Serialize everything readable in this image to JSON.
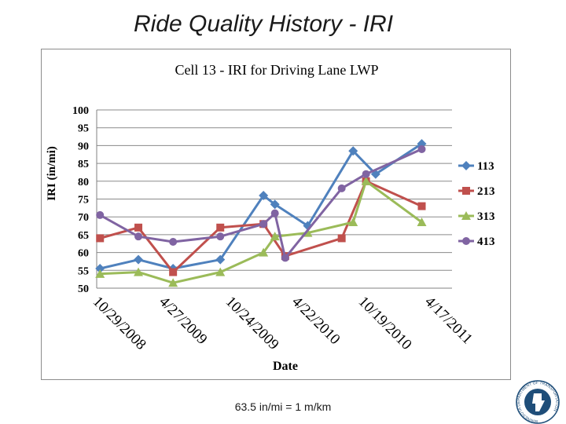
{
  "slide": {
    "title": "Ride Quality History - IRI",
    "footnote": "63.5 in/mi = 1 m/km"
  },
  "chart_data": {
    "type": "line",
    "title": "Cell 13 - IRI for Driving Lane LWP",
    "xlabel": "Date",
    "ylabel": "IRI (in/mi)",
    "ylim": [
      50,
      100
    ],
    "yticks": [
      100,
      95,
      90,
      85,
      80,
      75,
      70,
      65,
      60,
      55,
      50
    ],
    "xticks": [
      "10/29/2008",
      "4/27/2009",
      "10/24/2009",
      "4/22/2010",
      "10/19/2010",
      "4/17/2011"
    ],
    "xlim": [
      "2008-10-20",
      "2011-06-10"
    ],
    "grid": "horizontal",
    "legend_position": "right",
    "series": [
      {
        "name": "113",
        "color": "#4f81bd",
        "marker": "diamond",
        "points": [
          [
            "2008-10-29",
            55.5
          ],
          [
            "2009-02-10",
            58
          ],
          [
            "2009-05-15",
            55.5
          ],
          [
            "2009-09-20",
            58
          ],
          [
            "2010-01-15",
            76
          ],
          [
            "2010-02-15",
            73.5
          ],
          [
            "2010-05-15",
            67.5
          ],
          [
            "2010-09-15",
            88.5
          ],
          [
            "2010-11-15",
            82
          ],
          [
            "2011-03-20",
            90.5
          ]
        ]
      },
      {
        "name": "213",
        "color": "#c0504d",
        "marker": "square",
        "points": [
          [
            "2008-10-29",
            64
          ],
          [
            "2009-02-10",
            67
          ],
          [
            "2009-05-15",
            54.5
          ],
          [
            "2009-09-20",
            67
          ],
          [
            "2010-01-15",
            68
          ],
          [
            "2010-03-15",
            59
          ],
          [
            "2010-08-15",
            64
          ],
          [
            "2010-10-20",
            80
          ],
          [
            "2011-03-20",
            73
          ]
        ]
      },
      {
        "name": "313",
        "color": "#9bbb59",
        "marker": "triangle",
        "points": [
          [
            "2008-10-29",
            54
          ],
          [
            "2009-02-10",
            54.5
          ],
          [
            "2009-05-15",
            51.5
          ],
          [
            "2009-09-20",
            54.5
          ],
          [
            "2010-01-15",
            60
          ],
          [
            "2010-02-15",
            64.5
          ],
          [
            "2010-05-15",
            65.5
          ],
          [
            "2010-09-15",
            68.5
          ],
          [
            "2010-10-20",
            80
          ],
          [
            "2011-03-20",
            68.5
          ]
        ]
      },
      {
        "name": "413",
        "color": "#8064a2",
        "marker": "circle",
        "points": [
          [
            "2008-10-29",
            70.5
          ],
          [
            "2009-02-10",
            64.5
          ],
          [
            "2009-05-15",
            63
          ],
          [
            "2009-09-20",
            64.5
          ],
          [
            "2010-01-15",
            68
          ],
          [
            "2010-02-15",
            71
          ],
          [
            "2010-03-15",
            58.5
          ],
          [
            "2010-08-15",
            78
          ],
          [
            "2010-10-20",
            82
          ],
          [
            "2011-03-20",
            89
          ]
        ]
      }
    ]
  },
  "logo": {
    "icon": "mndot-logo-icon",
    "ring_text": "MINNESOTA DEPARTMENT OF TRANSPORTATION",
    "color": "#1f4e79"
  }
}
